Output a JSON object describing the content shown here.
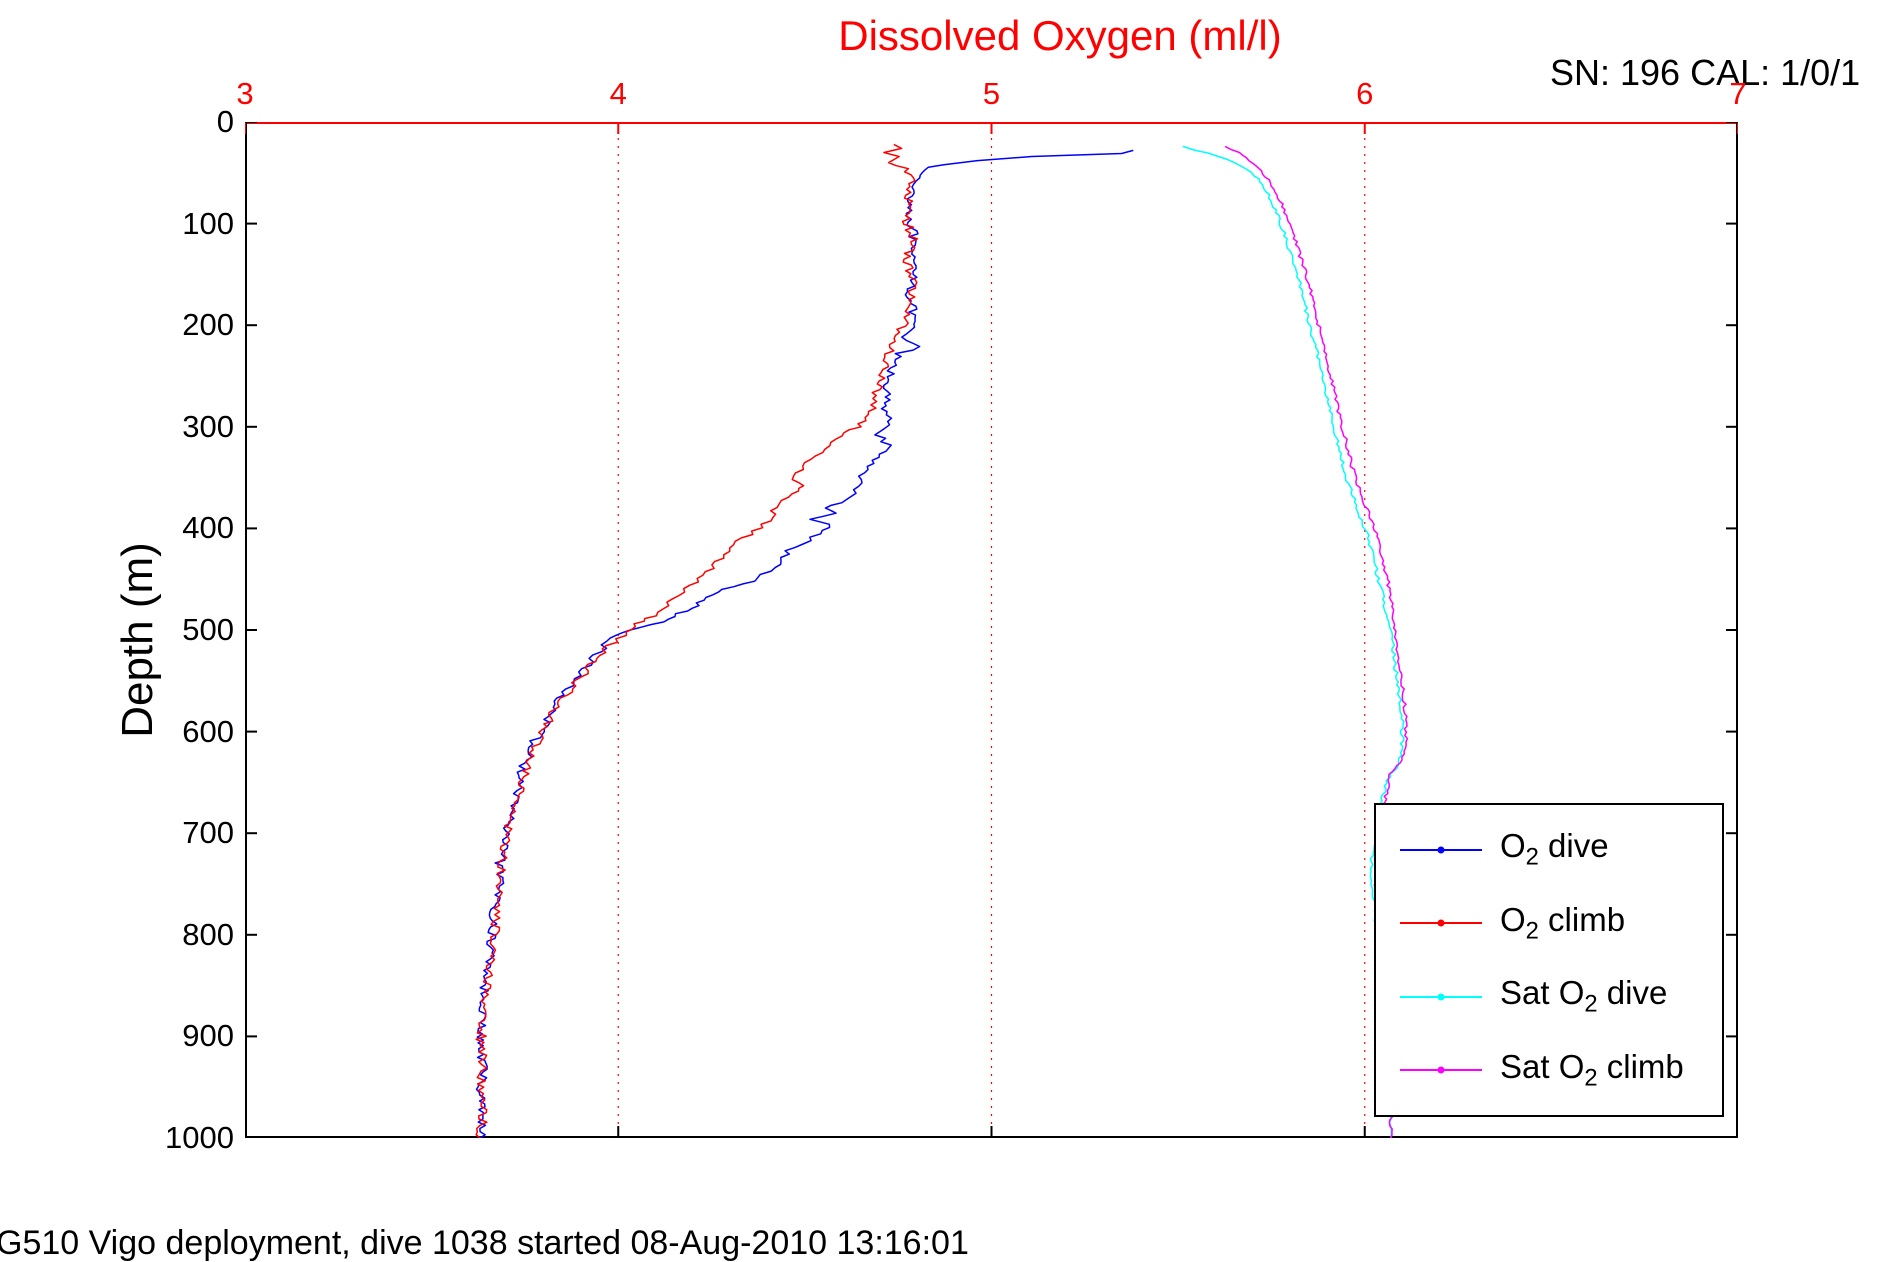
{
  "header": {
    "sn_cal": "SN: 196  CAL: 1/0/1"
  },
  "caption": "G510 Vigo deployment, dive 1038 started 08-Aug-2010 13:16:01",
  "chart_data": {
    "type": "line",
    "title": "Dissolved Oxygen (ml/l)",
    "xlabel": "Dissolved Oxygen (ml/l)",
    "ylabel": "Depth (m)",
    "xlim": [
      3,
      7
    ],
    "ylim": [
      0,
      1000
    ],
    "y_inverted": true,
    "x_ticks": [
      3,
      4,
      5,
      6,
      7
    ],
    "y_ticks": [
      0,
      100,
      200,
      300,
      400,
      500,
      600,
      700,
      800,
      900,
      1000
    ],
    "grid_x": [
      4,
      5,
      6
    ],
    "grid_style": "red-dotted-vertical",
    "top_axis_color": "#ff0000",
    "axis_color": "#000000",
    "legend_position": "lower right",
    "series": [
      {
        "name": "O2 dive",
        "label": {
          "pre": "O",
          "sub": "2",
          "rest": " dive"
        },
        "color": "#0000ff",
        "noise": 0.013,
        "points": [
          [
            5.39,
            28
          ],
          [
            5.36,
            31
          ],
          [
            5.12,
            34
          ],
          [
            4.95,
            38
          ],
          [
            4.86,
            42
          ],
          [
            4.82,
            47
          ],
          [
            4.8,
            55
          ],
          [
            4.79,
            70
          ],
          [
            4.78,
            90
          ],
          [
            4.79,
            110
          ],
          [
            4.78,
            130
          ],
          [
            4.8,
            150
          ],
          [
            4.78,
            170
          ],
          [
            4.79,
            190
          ],
          [
            4.78,
            205
          ],
          [
            4.76,
            215
          ],
          [
            4.81,
            221
          ],
          [
            4.75,
            228
          ],
          [
            4.73,
            245
          ],
          [
            4.72,
            265
          ],
          [
            4.71,
            285
          ],
          [
            4.73,
            298
          ],
          [
            4.7,
            308
          ],
          [
            4.72,
            318
          ],
          [
            4.69,
            330
          ],
          [
            4.67,
            342
          ],
          [
            4.65,
            352
          ],
          [
            4.63,
            362
          ],
          [
            4.62,
            372
          ],
          [
            4.56,
            380
          ],
          [
            4.59,
            385
          ],
          [
            4.51,
            391
          ],
          [
            4.57,
            396
          ],
          [
            4.55,
            402
          ],
          [
            4.51,
            412
          ],
          [
            4.46,
            422
          ],
          [
            4.43,
            432
          ],
          [
            4.41,
            442
          ],
          [
            4.36,
            452
          ],
          [
            4.27,
            460
          ],
          [
            4.24,
            468
          ],
          [
            4.21,
            476
          ],
          [
            4.16,
            484
          ],
          [
            4.11,
            492
          ],
          [
            4.02,
            500
          ],
          [
            3.98,
            508
          ],
          [
            3.96,
            518
          ],
          [
            3.93,
            528
          ],
          [
            3.91,
            538
          ],
          [
            3.89,
            548
          ],
          [
            3.86,
            558
          ],
          [
            3.84,
            570
          ],
          [
            3.82,
            582
          ],
          [
            3.8,
            594
          ],
          [
            3.78,
            606
          ],
          [
            3.76,
            622
          ],
          [
            3.74,
            640
          ],
          [
            3.73,
            658
          ],
          [
            3.72,
            676
          ],
          [
            3.7,
            695
          ],
          [
            3.69,
            715
          ],
          [
            3.68,
            735
          ],
          [
            3.68,
            755
          ],
          [
            3.67,
            775
          ],
          [
            3.66,
            795
          ],
          [
            3.66,
            815
          ],
          [
            3.65,
            835
          ],
          [
            3.64,
            855
          ],
          [
            3.64,
            875
          ],
          [
            3.63,
            895
          ],
          [
            3.63,
            915
          ],
          [
            3.64,
            935
          ],
          [
            3.63,
            955
          ],
          [
            3.64,
            975
          ],
          [
            3.63,
            1000
          ]
        ]
      },
      {
        "name": "O2 climb",
        "label": {
          "pre": "O",
          "sub": "2",
          "rest": " climb"
        },
        "color": "#ff0000",
        "noise": 0.013,
        "points": [
          [
            4.74,
            22
          ],
          [
            4.77,
            26
          ],
          [
            4.72,
            30
          ],
          [
            4.76,
            34
          ],
          [
            4.73,
            40
          ],
          [
            4.77,
            46
          ],
          [
            4.79,
            55
          ],
          [
            4.78,
            75
          ],
          [
            4.77,
            95
          ],
          [
            4.79,
            115
          ],
          [
            4.77,
            135
          ],
          [
            4.79,
            155
          ],
          [
            4.78,
            175
          ],
          [
            4.77,
            195
          ],
          [
            4.75,
            210
          ],
          [
            4.73,
            222
          ],
          [
            4.72,
            238
          ],
          [
            4.7,
            255
          ],
          [
            4.69,
            272
          ],
          [
            4.67,
            288
          ],
          [
            4.64,
            300
          ],
          [
            4.58,
            312
          ],
          [
            4.55,
            322
          ],
          [
            4.52,
            332
          ],
          [
            4.49,
            342
          ],
          [
            4.47,
            352
          ],
          [
            4.5,
            358
          ],
          [
            4.46,
            366
          ],
          [
            4.44,
            376
          ],
          [
            4.41,
            386
          ],
          [
            4.39,
            396
          ],
          [
            4.35,
            406
          ],
          [
            4.31,
            416
          ],
          [
            4.29,
            426
          ],
          [
            4.26,
            436
          ],
          [
            4.23,
            446
          ],
          [
            4.19,
            456
          ],
          [
            4.16,
            466
          ],
          [
            4.13,
            476
          ],
          [
            4.09,
            486
          ],
          [
            4.05,
            494
          ],
          [
            4.02,
            502
          ],
          [
            3.99,
            512
          ],
          [
            3.96,
            522
          ],
          [
            3.93,
            534
          ],
          [
            3.9,
            546
          ],
          [
            3.87,
            558
          ],
          [
            3.85,
            570
          ],
          [
            3.82,
            584
          ],
          [
            3.8,
            598
          ],
          [
            3.78,
            612
          ],
          [
            3.76,
            630
          ],
          [
            3.74,
            650
          ],
          [
            3.73,
            670
          ],
          [
            3.71,
            690
          ],
          [
            3.7,
            710
          ],
          [
            3.69,
            730
          ],
          [
            3.68,
            752
          ],
          [
            3.67,
            774
          ],
          [
            3.67,
            796
          ],
          [
            3.66,
            818
          ],
          [
            3.65,
            840
          ],
          [
            3.64,
            862
          ],
          [
            3.64,
            884
          ],
          [
            3.63,
            906
          ],
          [
            3.64,
            928
          ],
          [
            3.63,
            950
          ],
          [
            3.64,
            972
          ],
          [
            3.63,
            1000
          ]
        ]
      },
      {
        "name": "Sat O2 dive",
        "label": {
          "pre": "Sat O",
          "sub": "2",
          "rest": " dive"
        },
        "color": "#00ffff",
        "noise": 0.005,
        "points": [
          [
            5.51,
            24
          ],
          [
            5.55,
            28
          ],
          [
            5.6,
            33
          ],
          [
            5.65,
            40
          ],
          [
            5.7,
            50
          ],
          [
            5.73,
            62
          ],
          [
            5.75,
            78
          ],
          [
            5.77,
            95
          ],
          [
            5.79,
            115
          ],
          [
            5.81,
            140
          ],
          [
            5.83,
            165
          ],
          [
            5.85,
            195
          ],
          [
            5.87,
            225
          ],
          [
            5.89,
            255
          ],
          [
            5.91,
            290
          ],
          [
            5.93,
            320
          ],
          [
            5.95,
            350
          ],
          [
            5.98,
            380
          ],
          [
            6.01,
            410
          ],
          [
            6.03,
            440
          ],
          [
            6.05,
            470
          ],
          [
            6.07,
            500
          ],
          [
            6.08,
            530
          ],
          [
            6.09,
            560
          ],
          [
            6.1,
            590
          ],
          [
            6.1,
            615
          ],
          [
            6.09,
            632
          ],
          [
            6.06,
            648
          ],
          [
            6.05,
            662
          ],
          [
            6.04,
            680
          ],
          [
            6.03,
            700
          ],
          [
            6.02,
            725
          ],
          [
            6.02,
            750
          ],
          [
            6.03,
            780
          ],
          [
            6.03,
            810
          ],
          [
            6.04,
            840
          ],
          [
            6.05,
            870
          ],
          [
            6.05,
            900
          ],
          [
            6.06,
            930
          ],
          [
            6.06,
            960
          ],
          [
            6.07,
            1000
          ]
        ]
      },
      {
        "name": "Sat O2 climb",
        "label": {
          "pre": "Sat O",
          "sub": "2",
          "rest": " climb"
        },
        "color": "#ff00ff",
        "noise": 0.005,
        "points": [
          [
            5.63,
            24
          ],
          [
            5.66,
            30
          ],
          [
            5.69,
            38
          ],
          [
            5.72,
            48
          ],
          [
            5.75,
            60
          ],
          [
            5.77,
            75
          ],
          [
            5.79,
            92
          ],
          [
            5.81,
            112
          ],
          [
            5.83,
            135
          ],
          [
            5.85,
            160
          ],
          [
            5.87,
            190
          ],
          [
            5.89,
            220
          ],
          [
            5.91,
            252
          ],
          [
            5.93,
            285
          ],
          [
            5.95,
            315
          ],
          [
            5.97,
            345
          ],
          [
            6.0,
            375
          ],
          [
            6.03,
            405
          ],
          [
            6.05,
            435
          ],
          [
            6.07,
            465
          ],
          [
            6.08,
            495
          ],
          [
            6.09,
            525
          ],
          [
            6.1,
            555
          ],
          [
            6.11,
            585
          ],
          [
            6.11,
            610
          ],
          [
            6.1,
            628
          ],
          [
            6.07,
            642
          ],
          [
            6.06,
            658
          ],
          [
            6.05,
            675
          ],
          [
            6.04,
            695
          ],
          [
            6.03,
            718
          ],
          [
            6.03,
            742
          ],
          [
            6.03,
            768
          ],
          [
            6.04,
            795
          ],
          [
            6.04,
            822
          ],
          [
            6.05,
            850
          ],
          [
            6.05,
            878
          ],
          [
            6.06,
            906
          ],
          [
            6.06,
            934
          ],
          [
            6.07,
            962
          ],
          [
            6.07,
            1000
          ]
        ]
      }
    ]
  }
}
